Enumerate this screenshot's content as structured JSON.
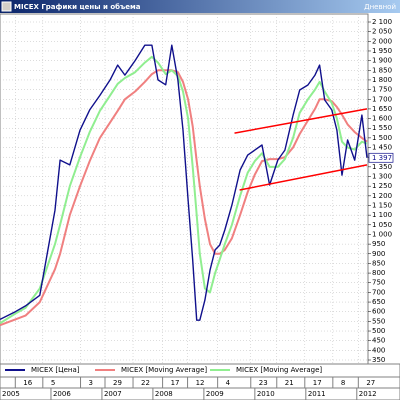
{
  "window": {
    "title": "MICEX Графики цены и объема",
    "period": "Дневной"
  },
  "chart_data": {
    "type": "line",
    "x": [
      2005.0,
      2005.3,
      2005.5,
      2005.78,
      2006.08,
      2006.18,
      2006.37,
      2006.57,
      2006.76,
      2006.96,
      2007.16,
      2007.31,
      2007.45,
      2007.65,
      2007.84,
      2007.98,
      2008.1,
      2008.25,
      2008.37,
      2008.49,
      2008.59,
      2008.69,
      2008.78,
      2008.86,
      2008.92,
      2009.02,
      2009.12,
      2009.22,
      2009.31,
      2009.41,
      2009.55,
      2009.71,
      2009.86,
      2010.0,
      2010.14,
      2010.29,
      2010.45,
      2010.59,
      2010.75,
      2010.88,
      2011.04,
      2011.18,
      2011.27,
      2011.37,
      2011.51,
      2011.61,
      2011.71,
      2011.82,
      2011.96,
      2012.1,
      2012.2
    ],
    "series": [
      {
        "name": "MICEX [Цена]",
        "color": "#10108c",
        "values": [
          560,
          600,
          630,
          685,
          1126,
          1385,
          1360,
          1540,
          1645,
          1720,
          1800,
          1877,
          1825,
          1900,
          1980,
          1980,
          1800,
          1775,
          1980,
          1800,
          1540,
          1178,
          867,
          556,
          556,
          660,
          815,
          920,
          945,
          1023,
          1152,
          1333,
          1411,
          1437,
          1463,
          1256,
          1385,
          1437,
          1618,
          1748,
          1774,
          1825,
          1877,
          1696,
          1645,
          1540,
          1307,
          1489,
          1385,
          1618,
          1397
        ]
      },
      {
        "name": "MICEX [Moving Average]",
        "color": "#f08080",
        "values": [
          530,
          560,
          580,
          650,
          820,
          900,
          1100,
          1250,
          1380,
          1500,
          1580,
          1640,
          1700,
          1740,
          1790,
          1830,
          1850,
          1850,
          1850,
          1840,
          1790,
          1700,
          1560,
          1380,
          1250,
          1080,
          950,
          900,
          900,
          920,
          980,
          1100,
          1220,
          1310,
          1380,
          1390,
          1390,
          1400,
          1450,
          1520,
          1590,
          1650,
          1700,
          1700,
          1690,
          1660,
          1620,
          1570,
          1530,
          1500,
          1480
        ]
      },
      {
        "name": "MICEX [Moving Average]",
        "color": "#90ee90",
        "values": [
          540,
          590,
          620,
          720,
          950,
          1050,
          1250,
          1400,
          1530,
          1640,
          1720,
          1780,
          1810,
          1840,
          1890,
          1920,
          1890,
          1830,
          1850,
          1820,
          1740,
          1600,
          1350,
          1100,
          900,
          720,
          700,
          800,
          870,
          950,
          1050,
          1200,
          1320,
          1380,
          1420,
          1350,
          1350,
          1390,
          1500,
          1630,
          1700,
          1750,
          1790,
          1740,
          1680,
          1600,
          1480,
          1450,
          1440,
          1480,
          1470
        ]
      }
    ],
    "trend_lines": [
      {
        "color": "#ff0000",
        "x": [
          2009.6,
          2012.2
        ],
        "values": [
          1525,
          1650
        ]
      },
      {
        "color": "#ff0000",
        "x": [
          2009.7,
          2012.2
        ],
        "values": [
          1230,
          1360
        ]
      }
    ],
    "last_value": {
      "value": 1397,
      "label": "1 397"
    },
    "xlim": [
      2005.0,
      2012.22
    ],
    "xticks": [
      {
        "value": 2005.0,
        "label": "2005"
      },
      {
        "value": 2006.0,
        "label": "2006"
      },
      {
        "value": 2007.0,
        "label": "2007"
      },
      {
        "value": 2008.0,
        "label": "2008"
      },
      {
        "value": 2009.0,
        "label": "2009"
      },
      {
        "value": 2010.0,
        "label": "2010"
      },
      {
        "value": 2011.0,
        "label": "2011"
      },
      {
        "value": 2012.0,
        "label": "2012"
      }
    ],
    "xticks_minor": [
      {
        "value": 2005.3,
        "label": "16"
      },
      {
        "value": 2005.84,
        "label": "5"
      },
      {
        "value": 2006.58,
        "label": "3"
      },
      {
        "value": 2007.06,
        "label": "29"
      },
      {
        "value": 2007.61,
        "label": "22"
      },
      {
        "value": 2008.19,
        "label": "17"
      },
      {
        "value": 2008.68,
        "label": "12"
      },
      {
        "value": 2009.27,
        "label": "4"
      },
      {
        "value": 2009.92,
        "label": "23"
      },
      {
        "value": 2010.43,
        "label": "21"
      },
      {
        "value": 2010.98,
        "label": "17"
      },
      {
        "value": 2011.53,
        "label": "8"
      },
      {
        "value": 2012.03,
        "label": "27"
      }
    ],
    "ylim": [
      350,
      2100
    ],
    "yticks": [
      {
        "value": 2100,
        "label": "2 100"
      },
      {
        "value": 2050,
        "label": "2 050"
      },
      {
        "value": 2000,
        "label": "2 000"
      },
      {
        "value": 1950,
        "label": "1 950"
      },
      {
        "value": 1900,
        "label": "1 900"
      },
      {
        "value": 1850,
        "label": "1 850"
      },
      {
        "value": 1800,
        "label": "1 800"
      },
      {
        "value": 1750,
        "label": "1 750"
      },
      {
        "value": 1700,
        "label": "1 700"
      },
      {
        "value": 1650,
        "label": "1 650"
      },
      {
        "value": 1600,
        "label": "1 600"
      },
      {
        "value": 1550,
        "label": "1 550"
      },
      {
        "value": 1500,
        "label": "1 500"
      },
      {
        "value": 1450,
        "label": "1 450"
      },
      {
        "value": 1400,
        "label": "1 400"
      },
      {
        "value": 1350,
        "label": "1 350"
      },
      {
        "value": 1300,
        "label": "1 300"
      },
      {
        "value": 1250,
        "label": "1 250"
      },
      {
        "value": 1200,
        "label": "1 200"
      },
      {
        "value": 1150,
        "label": "1 150"
      },
      {
        "value": 1100,
        "label": "1 100"
      },
      {
        "value": 1050,
        "label": "1 050"
      },
      {
        "value": 1000,
        "label": "1 000"
      },
      950,
      900,
      850,
      800,
      750,
      700,
      650,
      600,
      550,
      500,
      450,
      400,
      350
    ],
    "grid": true
  }
}
